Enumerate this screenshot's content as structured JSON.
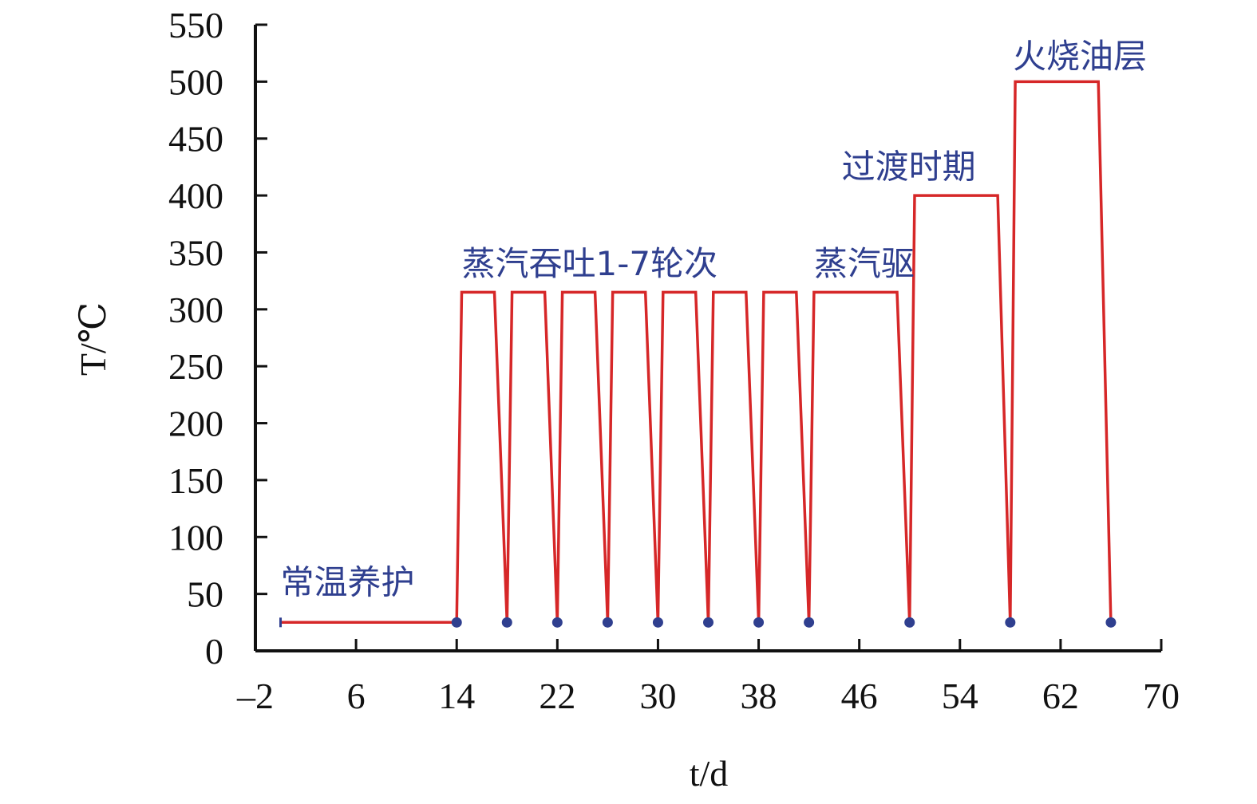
{
  "chart_data": {
    "type": "line",
    "xlabel": "t/d",
    "ylabel": "T/℃",
    "xlim": [
      -2,
      70
    ],
    "ylim": [
      0,
      550
    ],
    "xticks": [
      -2,
      6,
      14,
      22,
      30,
      38,
      46,
      54,
      62,
      70
    ],
    "xtick_labels": [
      "–2",
      "6",
      "14",
      "22",
      "30",
      "38",
      "46",
      "54",
      "62",
      "70"
    ],
    "yticks": [
      0,
      50,
      100,
      150,
      200,
      250,
      300,
      350,
      400,
      450,
      500,
      550
    ],
    "ytick_labels": [
      "0",
      "50",
      "100",
      "150",
      "200",
      "250",
      "300",
      "350",
      "400",
      "450",
      "500",
      "550"
    ],
    "grid": false,
    "line_color": "#d62728",
    "marker_color": "#2f3f8f",
    "annotation_color": "#2f3f8f",
    "series": [
      {
        "x": [
          0,
          14,
          14,
          14.4,
          17,
          18,
          18,
          18.4,
          21,
          22,
          22,
          22.4,
          25,
          26,
          26,
          26.4,
          29,
          30,
          30,
          30.4,
          33,
          34,
          34,
          34.4,
          37,
          38,
          38,
          38.4,
          41,
          42,
          42,
          42.4,
          49,
          50,
          50,
          50.4,
          57,
          58,
          58,
          58.4,
          65,
          66
        ],
        "y": [
          25,
          25,
          25,
          315,
          315,
          25,
          25,
          315,
          315,
          25,
          25,
          315,
          315,
          25,
          25,
          315,
          315,
          25,
          25,
          315,
          315,
          25,
          25,
          315,
          315,
          25,
          25,
          315,
          315,
          25,
          25,
          315,
          315,
          25,
          25,
          400,
          400,
          25,
          25,
          500,
          500,
          25
        ]
      }
    ],
    "markers": {
      "x": [
        14,
        18,
        22,
        26,
        30,
        34,
        38,
        42,
        50,
        58,
        66
      ],
      "y": [
        25,
        25,
        25,
        25,
        25,
        25,
        25,
        25,
        25,
        25,
        25
      ]
    },
    "annotations": [
      {
        "text": "常温养护",
        "x": 0,
        "y": 50
      },
      {
        "text": "蒸汽吞吐1-7轮次",
        "x": 14.4,
        "y": 330
      },
      {
        "text": "蒸汽驱",
        "x": 42.4,
        "y": 330
      },
      {
        "text": "过渡时期",
        "x": 44.6,
        "y": 415
      },
      {
        "text": "火烧油层",
        "x": 58.2,
        "y": 512
      }
    ]
  }
}
